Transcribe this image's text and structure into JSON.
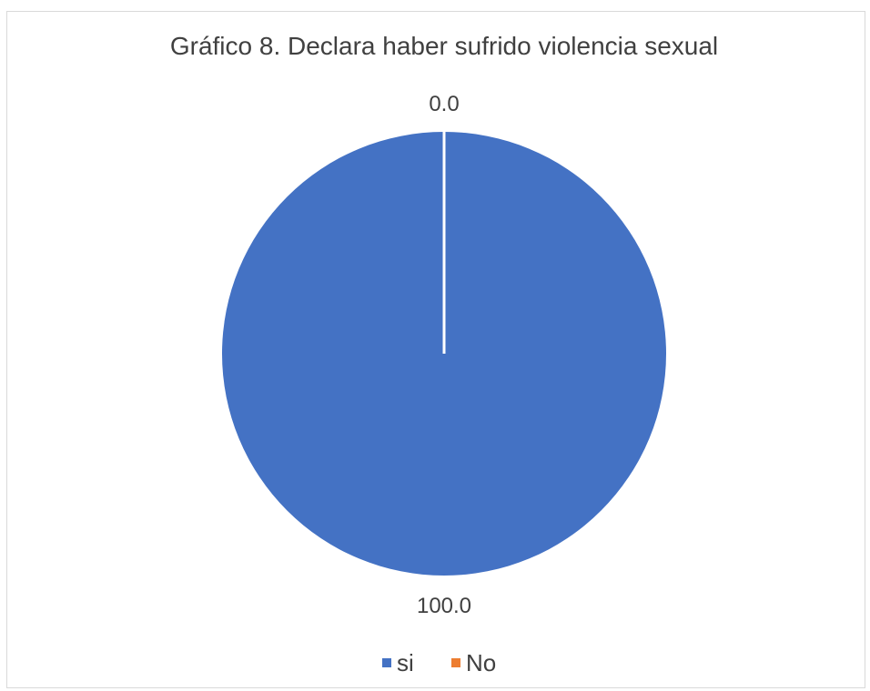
{
  "chart_data": {
    "type": "pie",
    "title": "Gráfico 8. Declara haber sufrido violencia sexual",
    "categories": [
      "si",
      "No"
    ],
    "values": [
      100.0,
      0.0
    ],
    "value_labels": [
      "100.0",
      "0.0"
    ],
    "colors": [
      "#4472C4",
      "#ED7D31"
    ],
    "legend": {
      "position": "bottom",
      "entries": [
        "si",
        "No"
      ]
    }
  }
}
